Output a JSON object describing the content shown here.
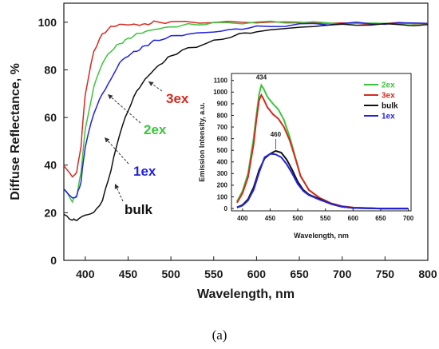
{
  "chart_data": [
    {
      "type": "line",
      "xlabel": "Wavelength, nm",
      "ylabel": "Diffuse Reflectance, %",
      "xlim": [
        375,
        800
      ],
      "ylim": [
        0,
        108
      ],
      "xticks": [
        400,
        450,
        500,
        550,
        600,
        650,
        700,
        750,
        800
      ],
      "yticks": [
        0,
        20,
        40,
        60,
        80,
        100
      ],
      "grid": false,
      "series": [
        {
          "name": "3ex",
          "color": "#d42a1e",
          "x": [
            375,
            385,
            390,
            395,
            400,
            410,
            420,
            430,
            440,
            450,
            460,
            470,
            480,
            500,
            550,
            600,
            650,
            700,
            750,
            800
          ],
          "y": [
            40,
            35,
            37,
            48,
            70,
            88,
            95,
            98,
            99,
            99,
            99,
            99,
            100,
            100,
            100,
            100,
            100,
            99.5,
            99.5,
            99.5
          ]
        },
        {
          "name": "2ex",
          "color": "#3cc43c",
          "x": [
            375,
            385,
            390,
            395,
            400,
            410,
            420,
            430,
            440,
            450,
            460,
            470,
            480,
            500,
            520,
            550,
            600,
            650,
            700,
            750,
            800
          ],
          "y": [
            30,
            25,
            27,
            37,
            55,
            73,
            83,
            88,
            91,
            93,
            95,
            96,
            97,
            98,
            99,
            99.5,
            100,
            100,
            99.5,
            99.5,
            99.5
          ]
        },
        {
          "name": "1ex",
          "color": "#2222dd",
          "x": [
            375,
            385,
            390,
            395,
            400,
            410,
            420,
            430,
            440,
            450,
            460,
            470,
            480,
            500,
            520,
            550,
            575,
            600,
            650,
            700,
            750,
            800
          ],
          "y": [
            30,
            26,
            27,
            33,
            48,
            62,
            70,
            76,
            83,
            86,
            88,
            90,
            92,
            94,
            95,
            96,
            97,
            98,
            99,
            99.5,
            99.5,
            99.5
          ]
        },
        {
          "name": "bulk",
          "color": "#111111",
          "x": [
            375,
            385,
            390,
            400,
            410,
            420,
            430,
            440,
            450,
            460,
            470,
            480,
            490,
            500,
            520,
            550,
            580,
            600,
            650,
            700,
            750,
            800
          ],
          "y": [
            19,
            17,
            17,
            19,
            20,
            25,
            38,
            53,
            63,
            71,
            76,
            80,
            83,
            86,
            89,
            92,
            95,
            96,
            98,
            99,
            99,
            99
          ]
        }
      ],
      "annotations": [
        "3ex",
        "2ex",
        "1ex",
        "bulk"
      ]
    },
    {
      "type": "line",
      "xlabel": "Wavelength, nm",
      "ylabel": "Emission Intensity, a.u.",
      "xlim": [
        380,
        705
      ],
      "ylim": [
        -20,
        1160
      ],
      "xticks": [
        400,
        450,
        500,
        550,
        600,
        650,
        700
      ],
      "yticks": [
        0,
        100,
        200,
        300,
        400,
        500,
        600,
        700,
        800,
        900,
        1000,
        1100
      ],
      "legend": "top-right",
      "peak_labels": [
        "434",
        "460"
      ],
      "series": [
        {
          "name": "2ex",
          "color": "#3cc43c",
          "x": [
            390,
            400,
            410,
            420,
            425,
            430,
            434,
            438,
            445,
            455,
            465,
            475,
            485,
            495,
            505,
            520,
            540,
            560,
            580,
            600,
            650,
            700
          ],
          "y": [
            60,
            150,
            300,
            600,
            800,
            980,
            1060,
            1030,
            960,
            900,
            850,
            760,
            620,
            450,
            280,
            160,
            90,
            45,
            20,
            8,
            0,
            0
          ]
        },
        {
          "name": "3ex",
          "color": "#d42a1e",
          "x": [
            390,
            400,
            410,
            420,
            425,
            430,
            434,
            438,
            445,
            455,
            465,
            475,
            485,
            495,
            505,
            520,
            540,
            560,
            580,
            600,
            650,
            700
          ],
          "y": [
            50,
            130,
            270,
            550,
            760,
            930,
            975,
            940,
            870,
            810,
            770,
            700,
            590,
            440,
            280,
            160,
            90,
            45,
            20,
            8,
            0,
            0
          ]
        },
        {
          "name": "bulk",
          "color": "#111111",
          "x": [
            390,
            400,
            410,
            420,
            430,
            440,
            450,
            460,
            470,
            480,
            490,
            500,
            510,
            520,
            540,
            560,
            580,
            600,
            650,
            700
          ],
          "y": [
            10,
            30,
            80,
            180,
            330,
            430,
            470,
            495,
            480,
            420,
            330,
            230,
            160,
            120,
            80,
            40,
            15,
            5,
            0,
            0
          ]
        },
        {
          "name": "1ex",
          "color": "#2222dd",
          "x": [
            390,
            400,
            410,
            420,
            430,
            440,
            450,
            460,
            470,
            480,
            490,
            500,
            510,
            520,
            540,
            560,
            580,
            600,
            650,
            700
          ],
          "y": [
            8,
            25,
            70,
            160,
            310,
            440,
            470,
            465,
            440,
            380,
            300,
            210,
            150,
            115,
            75,
            40,
            15,
            5,
            0,
            0
          ]
        }
      ]
    }
  ],
  "caption": "(a)"
}
